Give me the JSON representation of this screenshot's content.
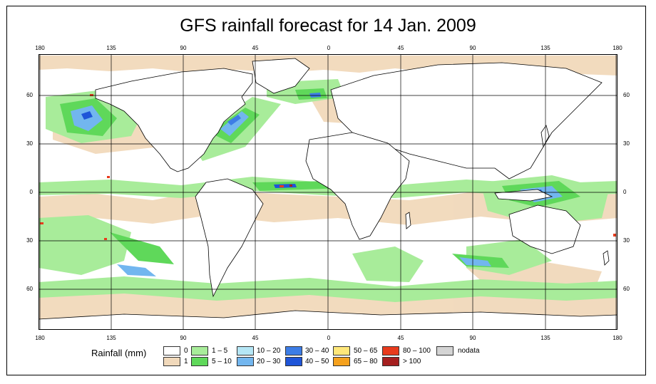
{
  "title": "GFS rainfall forecast for 14 Jan. 2009",
  "axes": {
    "lon_labels": [
      "180",
      "135",
      "90",
      "45",
      "0",
      "45",
      "90",
      "135",
      "180"
    ],
    "lat_labels": [
      "60",
      "30",
      "0",
      "30",
      "60"
    ]
  },
  "legend": {
    "title": "Rainfall (mm)",
    "items": [
      {
        "label": "0",
        "color": "#ffffff"
      },
      {
        "label": "1",
        "color": "#f1d9bb"
      },
      {
        "label": "1 – 5",
        "color": "#a8ec9a"
      },
      {
        "label": "5 – 10",
        "color": "#5fd85a"
      },
      {
        "label": "10 – 20",
        "color": "#b5e6f5"
      },
      {
        "label": "20 – 30",
        "color": "#72b6ef"
      },
      {
        "label": "30 – 40",
        "color": "#3d7de6"
      },
      {
        "label": "40 – 50",
        "color": "#1f55d8"
      },
      {
        "label": "50 – 65",
        "color": "#ffe77a"
      },
      {
        "label": "65 – 80",
        "color": "#f5a11d"
      },
      {
        "label": "80 – 100",
        "color": "#e83b1d"
      },
      {
        "label": "> 100",
        "color": "#a51f1f"
      },
      {
        "label": "nodata",
        "color": "#d4d4d4"
      }
    ]
  }
}
